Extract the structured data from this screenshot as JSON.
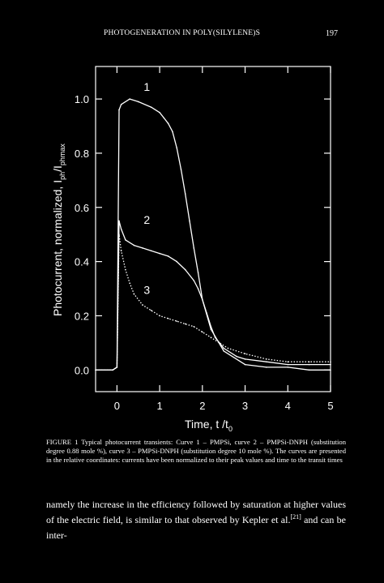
{
  "header": {
    "running_title": "PHOTOGENERATION IN POLY(SILYLENE)S",
    "page_number": "197"
  },
  "chart_data": {
    "type": "line",
    "xlabel": "Time, t /t",
    "xlabel_sub": "0",
    "ylabel": "Photocurrent, normalized, I",
    "ylabel_sub1": "ph",
    "ylabel_mid": "/I",
    "ylabel_sub2": "phmax",
    "xlim": [
      -0.5,
      5
    ],
    "ylim": [
      -0.08,
      1.12
    ],
    "x_ticks": [
      "0",
      "1",
      "2",
      "3",
      "4",
      "5"
    ],
    "y_ticks": [
      "0.0",
      "0.2",
      "0.4",
      "0.6",
      "0.8",
      "1.0"
    ],
    "x_tick_values": [
      0,
      1,
      2,
      3,
      4,
      5
    ],
    "y_tick_values": [
      0.0,
      0.2,
      0.4,
      0.6,
      0.8,
      1.0
    ],
    "series": [
      {
        "name": "1",
        "color": "#ffffff",
        "dash": "solid",
        "x": [
          -0.5,
          -0.1,
          0.0,
          0.05,
          0.1,
          0.3,
          0.5,
          0.8,
          1.0,
          1.1,
          1.2,
          1.3,
          1.4,
          1.5,
          1.6,
          1.7,
          1.8,
          1.9,
          2.0,
          2.2,
          2.5,
          3.0,
          3.5,
          4.0,
          4.5,
          5.0
        ],
        "y": [
          0.0,
          0.0,
          0.01,
          0.96,
          0.98,
          1.0,
          0.99,
          0.97,
          0.95,
          0.93,
          0.91,
          0.88,
          0.82,
          0.74,
          0.65,
          0.55,
          0.45,
          0.36,
          0.26,
          0.15,
          0.07,
          0.02,
          0.01,
          0.01,
          0.0,
          0.0
        ]
      },
      {
        "name": "2",
        "color": "#ffffff",
        "dash": "solid",
        "x": [
          -0.5,
          -0.1,
          0.0,
          0.05,
          0.1,
          0.2,
          0.4,
          0.6,
          0.8,
          1.0,
          1.2,
          1.4,
          1.6,
          1.8,
          1.9,
          2.0,
          2.1,
          2.2,
          2.3,
          2.5,
          2.8,
          3.0,
          3.5,
          4.0,
          4.5,
          5.0
        ],
        "y": [
          0.0,
          0.0,
          0.01,
          0.55,
          0.52,
          0.48,
          0.46,
          0.45,
          0.44,
          0.43,
          0.42,
          0.4,
          0.37,
          0.33,
          0.3,
          0.26,
          0.21,
          0.16,
          0.12,
          0.08,
          0.05,
          0.04,
          0.03,
          0.02,
          0.02,
          0.02
        ]
      },
      {
        "name": "3",
        "color": "#ffffff",
        "dash": "dotted",
        "x": [
          -0.5,
          -0.1,
          0.0,
          0.05,
          0.1,
          0.2,
          0.3,
          0.4,
          0.6,
          0.8,
          1.0,
          1.2,
          1.4,
          1.6,
          1.8,
          2.0,
          2.2,
          2.4,
          2.6,
          3.0,
          3.5,
          4.0,
          4.5,
          5.0
        ],
        "y": [
          0.0,
          0.0,
          0.01,
          0.5,
          0.44,
          0.37,
          0.32,
          0.28,
          0.24,
          0.22,
          0.2,
          0.19,
          0.18,
          0.17,
          0.16,
          0.14,
          0.12,
          0.1,
          0.08,
          0.06,
          0.04,
          0.03,
          0.03,
          0.03
        ]
      }
    ],
    "curve_labels": [
      {
        "text": "1",
        "x": 0.7,
        "y": 1.03
      },
      {
        "text": "2",
        "x": 0.7,
        "y": 0.54
      },
      {
        "text": "3",
        "x": 0.7,
        "y": 0.28
      }
    ]
  },
  "caption": "FIGURE 1 Typical photocurrent transients: Curve 1 – PMPSi, curve 2 – PMPSi-DNPH (substitution degree 0.88 mole %), curve 3 – PMPSi-DNPH (substitution degree 10 mole %). The curves are presented in the relative coordinates: currents have been normalized to their peak values and time to the transit times",
  "body": {
    "text_before": "namely the increase in the efficiency followed by saturation at higher values of the electric field, is similar to that observed by Kepler et al.",
    "reference": "[21]",
    "text_after": " and can be inter-"
  }
}
